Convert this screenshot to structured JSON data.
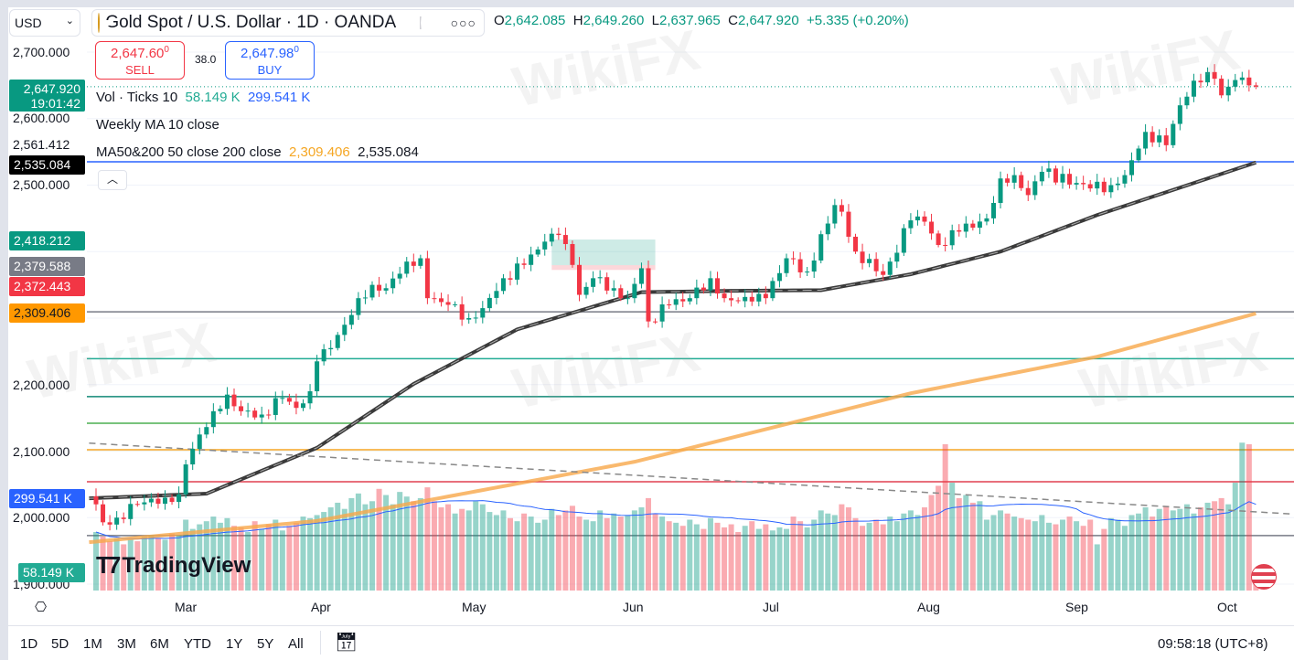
{
  "header": {
    "currency": "USD",
    "title": "Gold Spot / U.S. Dollar · 1D · OANDA",
    "ohlc": {
      "o_label": "O",
      "o": "2,642.085",
      "h_label": "H",
      "h": "2,649.260",
      "l_label": "L",
      "l": "2,637.965",
      "c_label": "C",
      "c": "2,647.920",
      "change": "+5.335 (+0.20%)"
    }
  },
  "trade": {
    "sell_price": "2,647.60",
    "sell_sup": "0",
    "sell_label": "SELL",
    "spread": "38.0",
    "buy_price": "2,647.98",
    "buy_sup": "0",
    "buy_label": "BUY"
  },
  "legend": {
    "vol_label": "Vol · Ticks 10",
    "vol_a": "58.149 K",
    "vol_b": "299.541 K",
    "weekly": "Weekly MA 10 close",
    "ma_label": "MA50&200 50 close 200 close",
    "ma50": "2,309.406",
    "ma200": "2,535.084"
  },
  "price_axis": {
    "ticks": [
      "2,700.000",
      "2,600.000",
      "2,561.412",
      "2,500.000",
      "2,200.000",
      "2,100.000",
      "2,000.000",
      "1,900.000"
    ],
    "last_price": "2,647.920",
    "countdown": "19:01:42",
    "badge_black": "2,535.084",
    "badge_green": "2,418.212",
    "badge_gray": "2,379.588",
    "badge_red": "2,372.443",
    "badge_orange": "2,309.406",
    "badge_vol_ma": "299.541 K",
    "badge_vol": "58.149 K"
  },
  "time_axis": [
    "Mar",
    "Apr",
    "May",
    "Jun",
    "Jul",
    "Aug",
    "Sep",
    "Oct"
  ],
  "toolbar": {
    "ranges": [
      "1D",
      "5D",
      "1M",
      "3M",
      "6M",
      "YTD",
      "1Y",
      "5Y",
      "All"
    ],
    "clock": "09:58:18 (UTC+8)"
  },
  "logo": "TradingView",
  "watermark": "WikiFX",
  "colors": {
    "up": "#089981",
    "down": "#f23645",
    "ma50": "#f7a84a",
    "ma200": "#3a3a3a",
    "volma": "#2962ff"
  },
  "chart_data": {
    "type": "candlestick",
    "title": "Gold Spot / U.S. Dollar · 1D · OANDA",
    "ylim": [
      1900,
      2700
    ],
    "close_anchors": [
      [
        0,
        2020
      ],
      [
        1,
        1993
      ],
      [
        3,
        2000
      ],
      [
        6,
        2020
      ],
      [
        10,
        2030
      ],
      [
        12,
        2035
      ],
      [
        13,
        2080
      ],
      [
        15,
        2125
      ],
      [
        17,
        2160
      ],
      [
        19,
        2185
      ],
      [
        21,
        2160
      ],
      [
        24,
        2155
      ],
      [
        27,
        2180
      ],
      [
        29,
        2165
      ],
      [
        31,
        2190
      ],
      [
        32,
        2235
      ],
      [
        34,
        2255
      ],
      [
        36,
        2290
      ],
      [
        38,
        2330
      ],
      [
        40,
        2350
      ],
      [
        42,
        2345
      ],
      [
        45,
        2385
      ],
      [
        47,
        2390
      ],
      [
        48,
        2330
      ],
      [
        51,
        2320
      ],
      [
        54,
        2300
      ],
      [
        56,
        2315
      ],
      [
        59,
        2360
      ],
      [
        62,
        2380
      ],
      [
        65,
        2415
      ],
      [
        67,
        2425
      ],
      [
        69,
        2380
      ],
      [
        70,
        2335
      ],
      [
        72,
        2360
      ],
      [
        75,
        2345
      ],
      [
        77,
        2330
      ],
      [
        79,
        2375
      ],
      [
        80,
        2295
      ],
      [
        83,
        2320
      ],
      [
        86,
        2330
      ],
      [
        89,
        2360
      ],
      [
        91,
        2330
      ],
      [
        95,
        2325
      ],
      [
        97,
        2330
      ],
      [
        100,
        2390
      ],
      [
        103,
        2370
      ],
      [
        107,
        2470
      ],
      [
        108,
        2460
      ],
      [
        110,
        2400
      ],
      [
        114,
        2365
      ],
      [
        115,
        2385
      ],
      [
        118,
        2447
      ],
      [
        120,
        2445
      ],
      [
        122,
        2410
      ],
      [
        125,
        2430
      ],
      [
        129,
        2450
      ],
      [
        131,
        2510
      ],
      [
        133,
        2515
      ],
      [
        135,
        2485
      ],
      [
        137,
        2520
      ],
      [
        144,
        2495
      ],
      [
        147,
        2500
      ],
      [
        149,
        2515
      ],
      [
        151,
        2555
      ],
      [
        152,
        2580
      ],
      [
        155,
        2560
      ],
      [
        157,
        2620
      ],
      [
        159,
        2657
      ],
      [
        161,
        2670
      ],
      [
        162,
        2660
      ],
      [
        163,
        2635
      ],
      [
        165,
        2658
      ],
      [
        167,
        2650
      ],
      [
        168,
        2648
      ]
    ],
    "volume_k": [
      190,
      175,
      160,
      170,
      150,
      165,
      160,
      175,
      180,
      170,
      165,
      185,
      180,
      230,
      200,
      215,
      225,
      240,
      220,
      235,
      210,
      205,
      190,
      225,
      200,
      215,
      230,
      195,
      210,
      220,
      240,
      235,
      245,
      255,
      270,
      285,
      265,
      300,
      315,
      280,
      290,
      330,
      310,
      280,
      320,
      305,
      290,
      300,
      335,
      290,
      270,
      280,
      250,
      265,
      260,
      290,
      280,
      255,
      245,
      260,
      235,
      225,
      250,
      240,
      220,
      230,
      265,
      245,
      260,
      275,
      240,
      230,
      225,
      260,
      235,
      250,
      240,
      245,
      260,
      270,
      300,
      250,
      240,
      225,
      220,
      210,
      230,
      215,
      200,
      235,
      220,
      205,
      215,
      190,
      210,
      225,
      200,
      215,
      195,
      205,
      200,
      240,
      225,
      205,
      230,
      260,
      250,
      245,
      280,
      270,
      235,
      210,
      220,
      230,
      215,
      240,
      225,
      250,
      260,
      245,
      270,
      310,
      340,
      475,
      350,
      300,
      310,
      285,
      290,
      230,
      245,
      260,
      250,
      240,
      235,
      230,
      225,
      245,
      220,
      215,
      230,
      240,
      225,
      210,
      230,
      150,
      200,
      235,
      230,
      210,
      245,
      250,
      270,
      240,
      265,
      275,
      260,
      265,
      280,
      250,
      270,
      285,
      290,
      300,
      280,
      350,
      480,
      475,
      58
    ],
    "ma200_anchors": [
      [
        -1,
        1963
      ],
      [
        32,
        1995
      ],
      [
        78,
        2084
      ],
      [
        118,
        2187
      ],
      [
        145,
        2242
      ],
      [
        168,
        2307
      ]
    ],
    "ma50_anchors": [
      [
        -1,
        2029
      ],
      [
        16,
        2036
      ],
      [
        32,
        2105
      ],
      [
        46,
        2201
      ],
      [
        61,
        2283
      ],
      [
        79,
        2339
      ],
      [
        92,
        2341
      ],
      [
        105,
        2342
      ],
      [
        118,
        2366
      ],
      [
        131,
        2400
      ],
      [
        145,
        2455
      ],
      [
        168,
        2534
      ]
    ],
    "trendline": [
      [
        -1,
        2112
      ],
      [
        174,
        2005
      ]
    ],
    "levels": [
      {
        "price": 2535.084,
        "color": "#2962ff"
      },
      {
        "price": 2309.406,
        "color": "#787b86"
      },
      {
        "price": 2239,
        "color": "#22ab94"
      },
      {
        "price": 2182,
        "color": "#138a77"
      },
      {
        "price": 2142,
        "color": "#4caf50"
      },
      {
        "price": 2102,
        "color": "#f5a623"
      },
      {
        "price": 2054,
        "color": "#e04050"
      },
      {
        "price": 1973,
        "color": "#787b86"
      }
    ],
    "zone": {
      "from_idx": 66,
      "to_idx": 81,
      "top": 2418.212,
      "mid": 2379.588,
      "bottom": 2372.443
    }
  }
}
